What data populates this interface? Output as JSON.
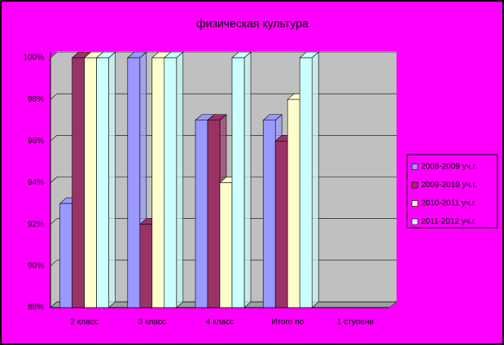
{
  "chart_data": {
    "type": "bar3d",
    "title": "физическая культура",
    "categories": [
      "2 класс",
      "3 класс",
      "4 класс",
      "Итого по",
      "1 ступени"
    ],
    "series": [
      {
        "name": "2008-2009 уч.г.",
        "color": "#9999ff",
        "values": [
          93,
          100,
          97,
          97,
          null
        ]
      },
      {
        "name": "2009-2010 уч.г.",
        "color": "#993366",
        "values": [
          100,
          92,
          97,
          96,
          null
        ]
      },
      {
        "name": "2010-2011 уч.г.",
        "color": "#ffffcc",
        "values": [
          100,
          100,
          94,
          98,
          null
        ]
      },
      {
        "name": "2011-2012 уч.г.",
        "color": "#ccffff",
        "values": [
          100,
          100,
          100,
          100,
          null
        ]
      }
    ],
    "ylim": [
      88,
      100
    ],
    "yticks": [
      {
        "value": 88,
        "label": "88%"
      },
      {
        "value": 90,
        "label": "90%"
      },
      {
        "value": 92,
        "label": "92%"
      },
      {
        "value": 94,
        "label": "94%"
      },
      {
        "value": 96,
        "label": "96%"
      },
      {
        "value": 98,
        "label": "98%"
      },
      {
        "value": 100,
        "label": "100%"
      }
    ],
    "grid": true,
    "legend": "right"
  }
}
